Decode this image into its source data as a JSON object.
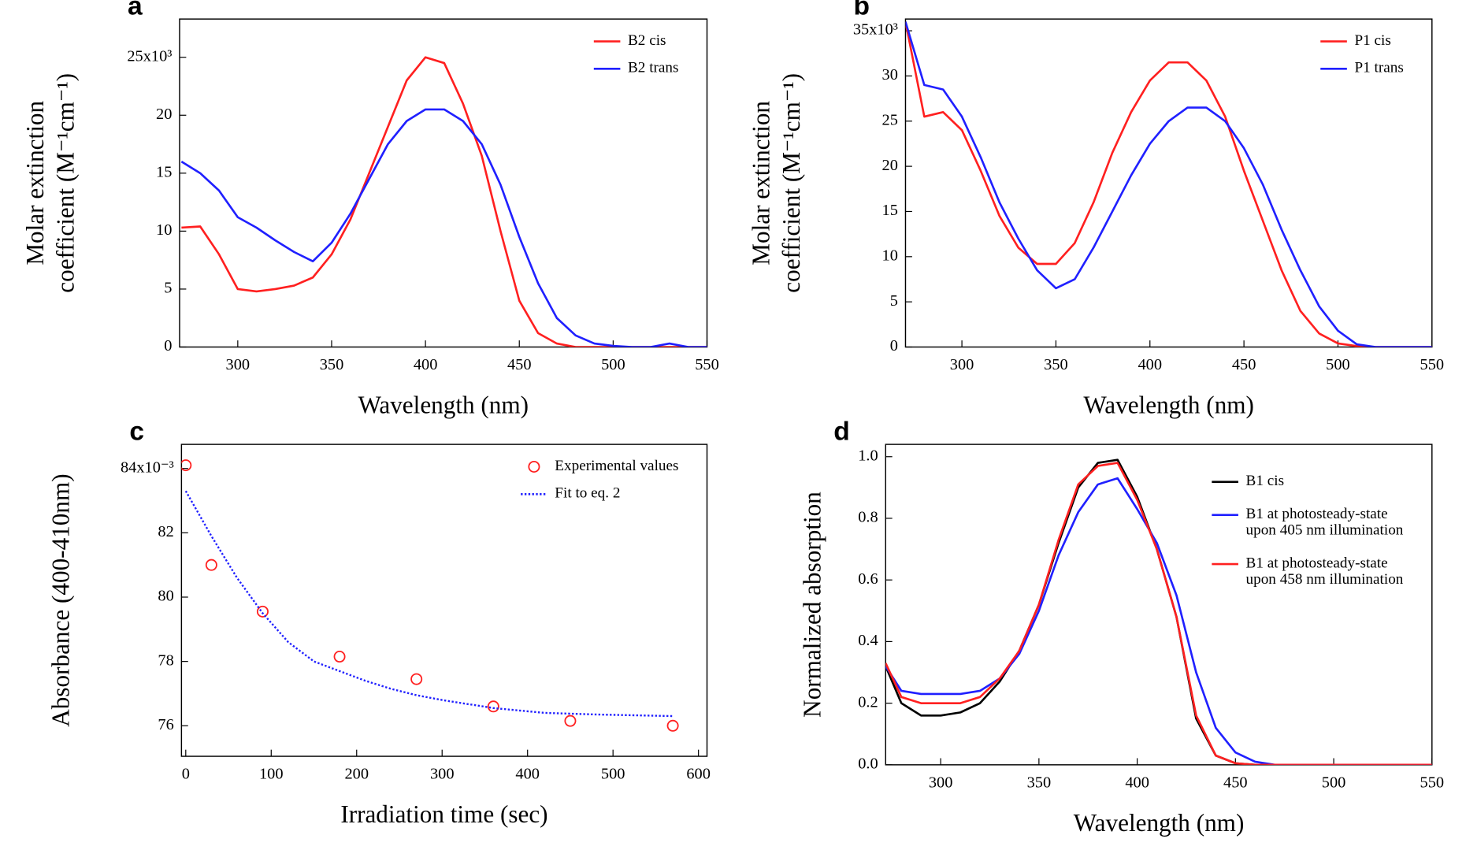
{
  "chart_data": [
    {
      "type": "line",
      "label": "a",
      "xlabel": "Wavelength (nm)",
      "ylabel": [
        "Molar extinction",
        "coefficient (M⁻¹cm⁻¹)"
      ],
      "xlim": [
        269,
        550
      ],
      "ylim": [
        0,
        28.3
      ],
      "xticks": [
        300,
        350,
        400,
        450,
        500,
        550
      ],
      "yticks": [
        0,
        5,
        10,
        15,
        20,
        {
          "value": 25,
          "label": "25x10³"
        }
      ],
      "grid": false,
      "legend": "upper right",
      "x": [
        270,
        280,
        290,
        300,
        310,
        320,
        330,
        340,
        350,
        360,
        370,
        380,
        390,
        400,
        410,
        420,
        430,
        440,
        450,
        460,
        470,
        480,
        490,
        500,
        510,
        520,
        530,
        540,
        550
      ],
      "series": [
        {
          "name": "B2 cis",
          "color": "#ff2020",
          "values": [
            10.3,
            10.4,
            8.0,
            5.0,
            4.8,
            5.0,
            5.3,
            6.0,
            8.0,
            11.0,
            15.0,
            19.0,
            23.0,
            25.0,
            24.5,
            21.0,
            16.5,
            10.0,
            4.0,
            1.2,
            0.3,
            0,
            0,
            0,
            0,
            0,
            0,
            0,
            0
          ]
        },
        {
          "name": "B2 trans",
          "color": "#2020ff",
          "values": [
            16,
            15,
            13.5,
            11.2,
            10.3,
            9.2,
            8.2,
            7.4,
            9,
            11.5,
            14.5,
            17.5,
            19.5,
            20.5,
            20.5,
            19.5,
            17.5,
            14,
            9.5,
            5.5,
            2.5,
            1,
            0.3,
            0.1,
            0,
            0,
            0.3,
            0,
            0
          ]
        }
      ]
    },
    {
      "type": "line",
      "label": "b",
      "xlabel": "Wavelength (nm)",
      "ylabel": [
        "Molar extinction",
        "coefficient (M⁻¹cm⁻¹)"
      ],
      "xlim": [
        270,
        550
      ],
      "ylim": [
        0,
        36.3
      ],
      "xticks": [
        300,
        350,
        400,
        450,
        500,
        550
      ],
      "yticks": [
        0,
        5,
        10,
        15,
        20,
        25,
        30,
        {
          "value": 35,
          "label": "35x10³"
        }
      ],
      "grid": false,
      "legend": "upper right",
      "x": [
        270,
        280,
        290,
        300,
        310,
        320,
        330,
        340,
        350,
        360,
        370,
        380,
        390,
        400,
        410,
        420,
        430,
        440,
        450,
        460,
        470,
        480,
        490,
        500,
        510,
        520,
        530,
        540,
        550
      ],
      "series": [
        {
          "name": "P1 cis",
          "color": "#ff2020",
          "values": [
            36,
            25.5,
            26,
            24,
            19.5,
            14.5,
            11,
            9.2,
            9.2,
            11.5,
            16,
            21.5,
            26,
            29.5,
            31.5,
            31.5,
            29.5,
            25.5,
            19.5,
            14,
            8.5,
            4,
            1.5,
            0.4,
            0.1,
            0,
            0,
            0,
            0
          ]
        },
        {
          "name": "P1 trans",
          "color": "#2020ff",
          "values": [
            36,
            29,
            28.5,
            25.5,
            21,
            16,
            12,
            8.5,
            6.5,
            7.5,
            11,
            15,
            19,
            22.5,
            25,
            26.5,
            26.5,
            25,
            22,
            18,
            13,
            8.5,
            4.5,
            1.8,
            0.3,
            0,
            0,
            0,
            0
          ]
        }
      ]
    },
    {
      "type": "scatter",
      "label": "c",
      "xlabel": "Irradiation time (sec)",
      "ylabel": [
        "Absorbance (400-410nm)"
      ],
      "xlim": [
        -5,
        610
      ],
      "ylim": [
        75.05,
        84.75
      ],
      "xticks": [
        0,
        100,
        200,
        300,
        400,
        500,
        600
      ],
      "yticks": [
        76,
        78,
        80,
        82,
        {
          "value": 84,
          "label": "84x10⁻³"
        }
      ],
      "grid": false,
      "legend": "upper right",
      "series": [
        {
          "name": "Experimental values",
          "type": "scatter",
          "color": "#ff2020",
          "x": [
            0,
            30,
            90,
            180,
            270,
            360,
            450,
            570
          ],
          "values": [
            84.1,
            81.0,
            79.55,
            78.15,
            77.45,
            76.6,
            76.15,
            76.0
          ]
        },
        {
          "name": "Fit to eq. 2",
          "type": "line",
          "linestyle": "dotted",
          "color": "#2020ff",
          "x": [
            0,
            30,
            60,
            90,
            120,
            150,
            180,
            210,
            240,
            270,
            300,
            360,
            420,
            480,
            570
          ],
          "values": [
            83.3,
            81.9,
            80.6,
            79.5,
            78.6,
            78.0,
            77.7,
            77.4,
            77.15,
            76.95,
            76.8,
            76.55,
            76.4,
            76.35,
            76.3
          ]
        }
      ]
    },
    {
      "type": "line",
      "label": "d",
      "xlabel": "Wavelength (nm)",
      "ylabel": [
        "Normalized absorption"
      ],
      "xlim": [
        272,
        550
      ],
      "ylim": [
        0,
        1.04
      ],
      "xticks": [
        300,
        350,
        400,
        450,
        500,
        550
      ],
      "yticks": [
        {
          "value": 0,
          "label": "0.0"
        },
        0.2,
        0.4,
        0.6,
        0.8,
        {
          "value": 1,
          "label": "1.0"
        }
      ],
      "grid": false,
      "legend": "upper right",
      "x": [
        272,
        280,
        290,
        300,
        310,
        320,
        330,
        340,
        350,
        360,
        370,
        380,
        390,
        400,
        410,
        420,
        430,
        440,
        450,
        460,
        470,
        480,
        490,
        500,
        510,
        520,
        530,
        540,
        550
      ],
      "series": [
        {
          "name": [
            "B1 cis"
          ],
          "color": "#000000",
          "values": [
            0.32,
            0.2,
            0.16,
            0.16,
            0.17,
            0.2,
            0.27,
            0.37,
            0.52,
            0.72,
            0.9,
            0.98,
            0.99,
            0.87,
            0.7,
            0.48,
            0.15,
            0.03,
            0.005,
            0,
            0,
            0,
            0,
            0,
            0,
            0,
            0,
            0,
            0
          ]
        },
        {
          "name": [
            "B1 at photosteady-state",
            "upon 405 nm illumination"
          ],
          "color": "#2020ff",
          "values": [
            0.32,
            0.24,
            0.23,
            0.23,
            0.23,
            0.24,
            0.28,
            0.36,
            0.5,
            0.68,
            0.82,
            0.91,
            0.93,
            0.83,
            0.72,
            0.55,
            0.3,
            0.12,
            0.04,
            0.01,
            0,
            0,
            0,
            0,
            0,
            0,
            0,
            0,
            0
          ]
        },
        {
          "name": [
            "B1 at photosteady-state",
            "upon 458 nm illumination"
          ],
          "color": "#ff2020",
          "values": [
            0.33,
            0.22,
            0.2,
            0.2,
            0.2,
            0.22,
            0.28,
            0.37,
            0.52,
            0.73,
            0.91,
            0.97,
            0.98,
            0.86,
            0.7,
            0.48,
            0.16,
            0.03,
            0.005,
            0,
            0,
            0,
            0,
            0,
            0,
            0,
            0,
            0,
            0
          ]
        }
      ]
    }
  ]
}
